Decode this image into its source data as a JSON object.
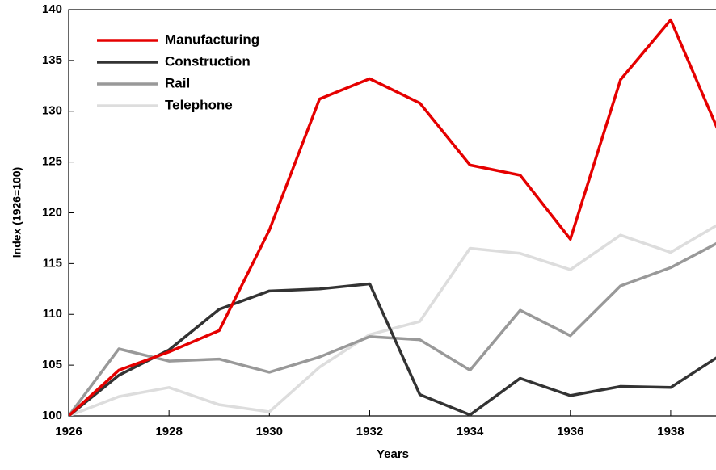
{
  "chart_data": {
    "type": "line",
    "xlabel": "Years",
    "ylabel": "Index (1926=100)",
    "x": [
      1926,
      1927,
      1928,
      1929,
      1930,
      1931,
      1932,
      1933,
      1934,
      1935,
      1936,
      1937,
      1938,
      1939
    ],
    "series": [
      {
        "name": "Manufacturing",
        "color": "#e50000",
        "values": [
          100,
          104.5,
          106.3,
          108.4,
          118.3,
          131.2,
          133.2,
          130.8,
          124.7,
          123.7,
          117.4,
          133.1,
          139.0,
          127.5
        ]
      },
      {
        "name": "Construction",
        "color": "#333333",
        "values": [
          100,
          104.0,
          106.5,
          110.5,
          112.3,
          112.5,
          113.0,
          102.1,
          100.1,
          103.7,
          102.0,
          102.9,
          102.8,
          106.0
        ]
      },
      {
        "name": "Rail",
        "color": "#999999",
        "values": [
          100,
          106.6,
          105.4,
          105.6,
          104.3,
          105.8,
          107.8,
          107.5,
          104.5,
          110.4,
          107.9,
          112.8,
          114.6,
          117.2
        ]
      },
      {
        "name": "Telephone",
        "color": "#dddddd",
        "values": [
          100,
          101.9,
          102.8,
          101.1,
          100.4,
          104.8,
          108.0,
          109.3,
          116.5,
          116.0,
          114.4,
          117.8,
          116.1,
          119.0
        ]
      }
    ],
    "xlim": [
      1926,
      1939
    ],
    "xticks": [
      1926,
      1928,
      1930,
      1932,
      1934,
      1936,
      1938
    ],
    "ylim": [
      100,
      140
    ],
    "yticks": [
      100,
      105,
      110,
      115,
      120,
      125,
      130,
      135,
      140
    ],
    "grid": false,
    "legend": "upper left"
  }
}
